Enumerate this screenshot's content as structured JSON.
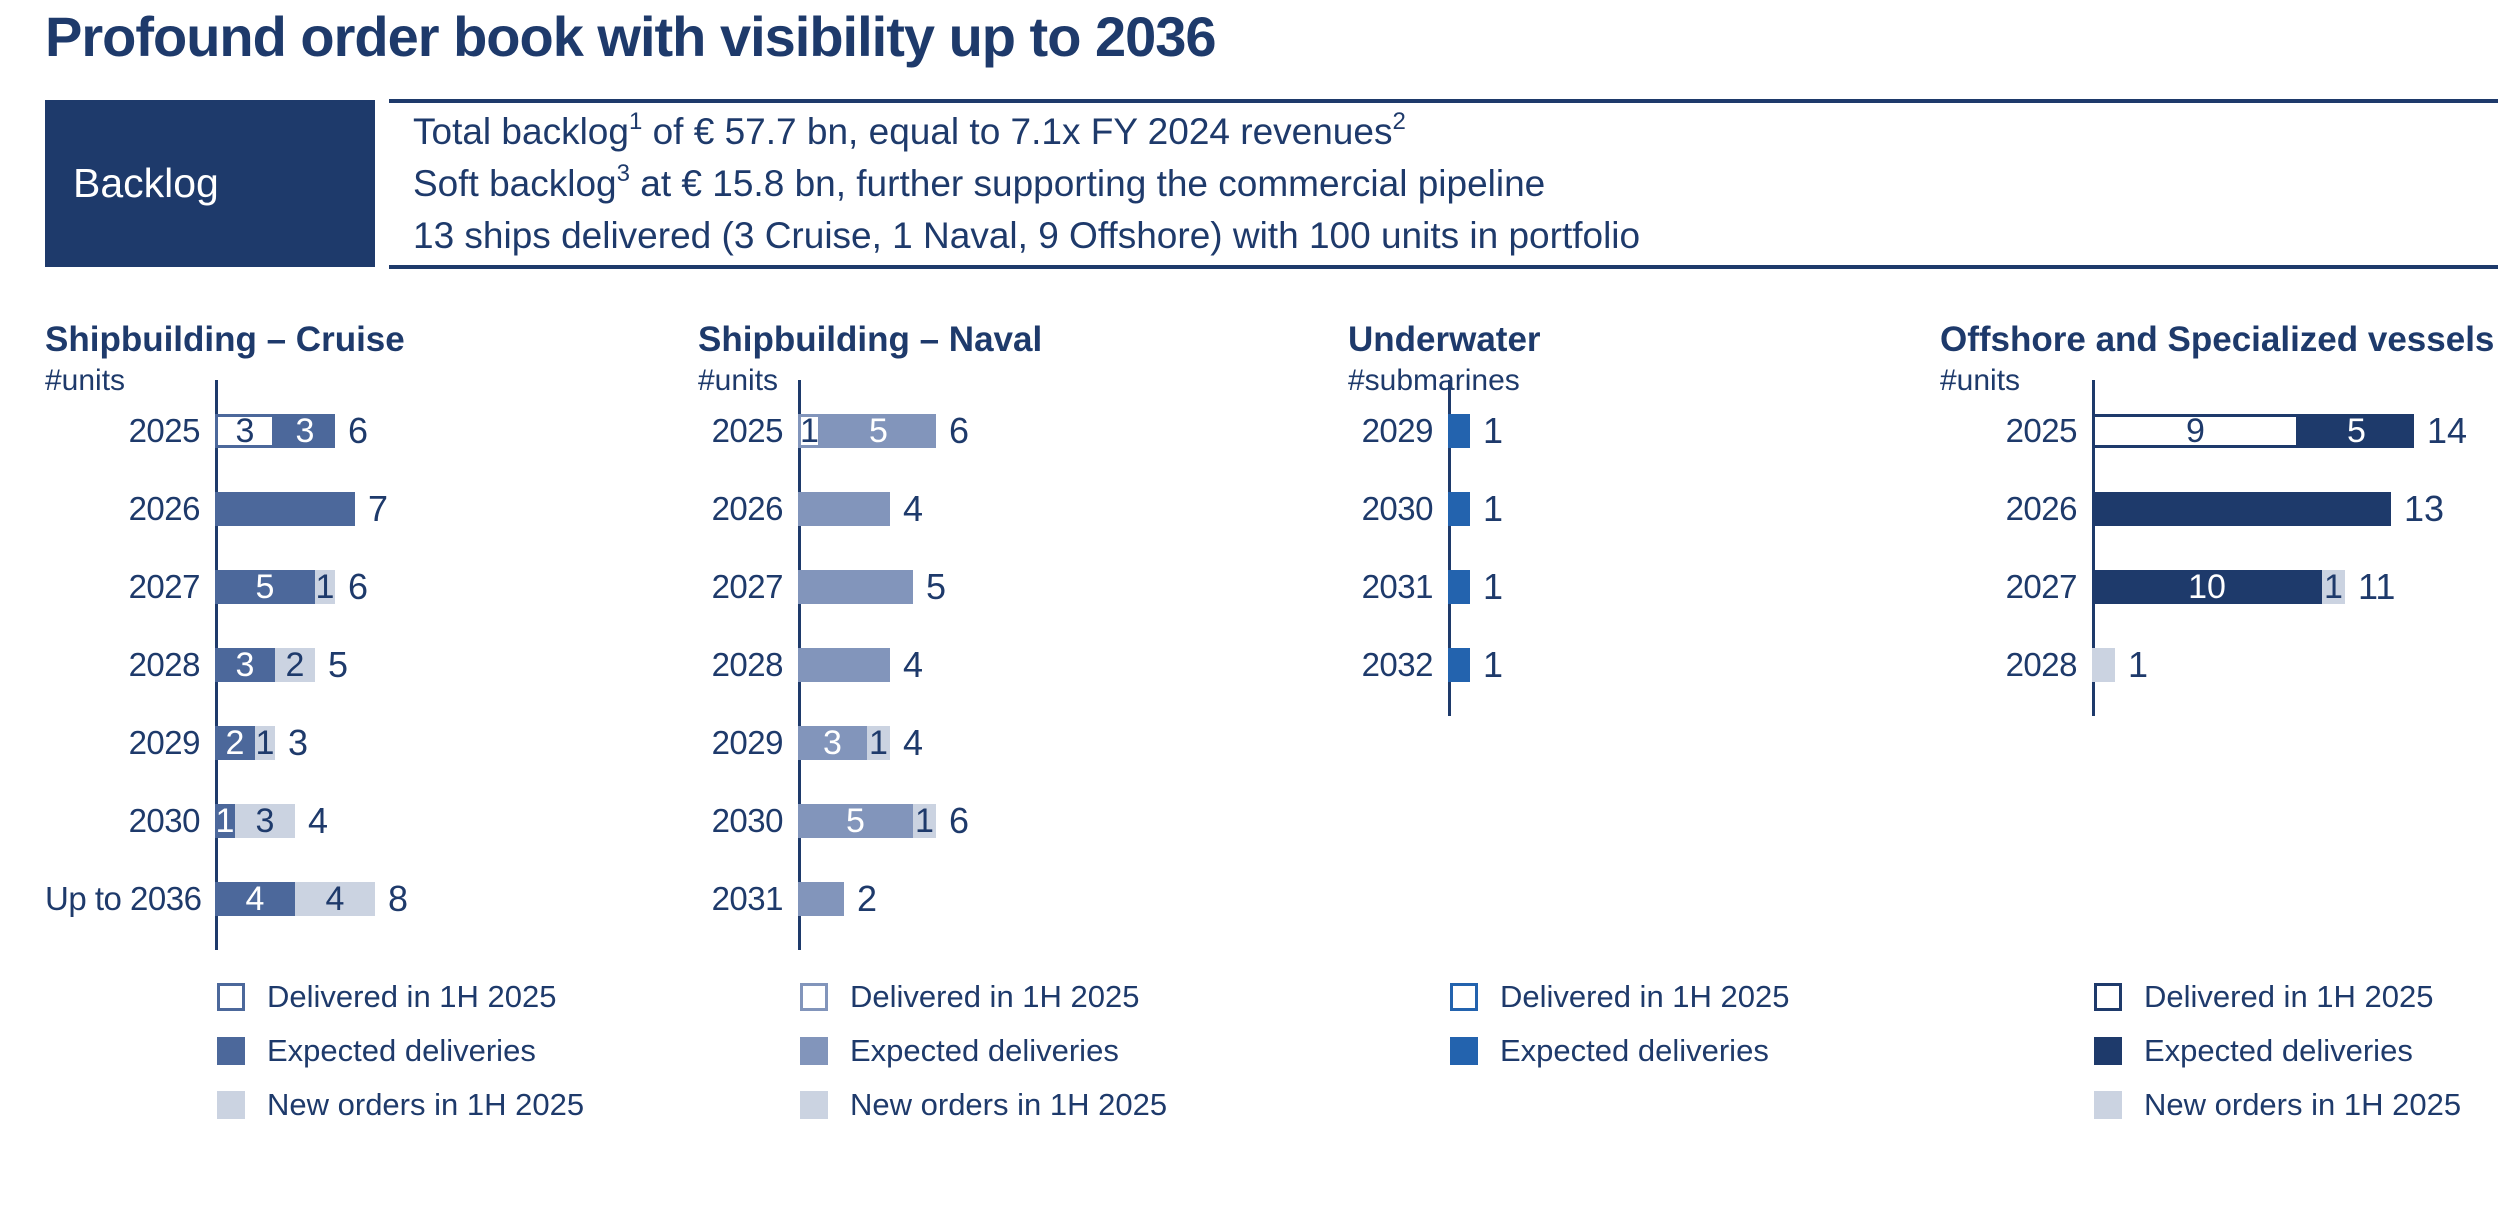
{
  "page": {
    "title": "Profound order book with visibility up to 2036"
  },
  "header": {
    "box_label": "Backlog",
    "lines": [
      {
        "parts": [
          {
            "text": "Total backlog"
          },
          {
            "text": "1",
            "sup": true
          },
          {
            "text": " of € 57.7 bn, equal to 7.1x FY 2024 revenues"
          },
          {
            "text": "2",
            "sup": true
          }
        ]
      },
      {
        "parts": [
          {
            "text": "Soft backlog"
          },
          {
            "text": "3",
            "sup": true
          },
          {
            "text": " at € 15.8 bn, further supporting the commercial pipeline"
          }
        ]
      },
      {
        "parts": [
          {
            "text": "13 ships delivered (3 Cruise, 1 Naval, 9 Offshore) with 100 units in portfolio"
          }
        ]
      }
    ]
  },
  "colors": {
    "navy": "#1E3A6B",
    "cruise_blue": "#4C689B",
    "naval_blue": "#8295BB",
    "underwater_blue": "#2363AE",
    "new_orders_gray": "#CBD3E1",
    "white": "#FFFFFF"
  },
  "chart_data": [
    {
      "type": "stacked_bar_horizontal",
      "slug": "shipbuilding-cruise",
      "title": "Shipbuilding – Cruise",
      "subtitle": "#units",
      "color_expected": "#4C689B",
      "color_new": "#CBD3E1",
      "categories": [
        "2025",
        "2026",
        "2027",
        "2028",
        "2029",
        "2030",
        "Up to 2036"
      ],
      "series": [
        {
          "name": "Delivered in 1H 2025",
          "values": [
            3,
            0,
            0,
            0,
            0,
            0,
            0
          ]
        },
        {
          "name": "Expected deliveries",
          "values": [
            3,
            7,
            5,
            3,
            2,
            1,
            4
          ]
        },
        {
          "name": "New orders in 1H 2025",
          "values": [
            0,
            0,
            1,
            2,
            1,
            3,
            4
          ]
        }
      ],
      "totals": [
        6,
        7,
        6,
        5,
        3,
        4,
        8
      ],
      "legend": [
        {
          "swatch": "delivered",
          "label": "Delivered in 1H 2025"
        },
        {
          "swatch": "expected",
          "label": "Expected deliveries"
        },
        {
          "swatch": "new",
          "label": "New orders in 1H 2025"
        }
      ]
    },
    {
      "type": "stacked_bar_horizontal",
      "slug": "shipbuilding-naval",
      "title": "Shipbuilding – Naval",
      "subtitle": "#units",
      "color_expected": "#8295BB",
      "color_new": "#CBD3E1",
      "categories": [
        "2025",
        "2026",
        "2027",
        "2028",
        "2029",
        "2030",
        "2031"
      ],
      "series": [
        {
          "name": "Delivered in 1H 2025",
          "values": [
            1,
            0,
            0,
            0,
            0,
            0,
            0
          ]
        },
        {
          "name": "Expected deliveries",
          "values": [
            5,
            4,
            5,
            4,
            3,
            5,
            2
          ]
        },
        {
          "name": "New orders in 1H 2025",
          "values": [
            0,
            0,
            0,
            0,
            1,
            1,
            0
          ]
        }
      ],
      "totals": [
        6,
        4,
        5,
        4,
        4,
        6,
        2
      ],
      "legend": [
        {
          "swatch": "delivered",
          "label": "Delivered in 1H 2025"
        },
        {
          "swatch": "expected",
          "label": "Expected deliveries"
        },
        {
          "swatch": "new",
          "label": "New orders in 1H 2025"
        }
      ]
    },
    {
      "type": "stacked_bar_horizontal",
      "slug": "underwater",
      "title": "Underwater",
      "subtitle": "#submarines",
      "color_expected": "#2363AE",
      "color_new": "#CBD3E1",
      "categories": [
        "2029",
        "2030",
        "2031",
        "2032"
      ],
      "series": [
        {
          "name": "Delivered in 1H 2025",
          "values": [
            0,
            0,
            0,
            0
          ]
        },
        {
          "name": "Expected deliveries",
          "values": [
            1,
            1,
            1,
            1
          ]
        }
      ],
      "totals": [
        1,
        1,
        1,
        1
      ],
      "legend": [
        {
          "swatch": "delivered",
          "label": "Delivered in 1H 2025"
        },
        {
          "swatch": "expected",
          "label": "Expected deliveries"
        }
      ]
    },
    {
      "type": "stacked_bar_horizontal",
      "slug": "offshore-specialized",
      "title": "Offshore and Specialized vessels",
      "subtitle": "#units",
      "color_expected": "#1E3A6B",
      "color_new": "#CBD3E1",
      "categories": [
        "2025",
        "2026",
        "2027",
        "2028"
      ],
      "series": [
        {
          "name": "Delivered in 1H 2025",
          "values": [
            9,
            0,
            0,
            0
          ]
        },
        {
          "name": "Expected deliveries",
          "values": [
            5,
            13,
            10,
            0
          ]
        },
        {
          "name": "New orders in 1H 2025",
          "values": [
            0,
            0,
            1,
            1
          ]
        }
      ],
      "totals": [
        14,
        13,
        11,
        1
      ],
      "legend": [
        {
          "swatch": "delivered",
          "label": "Delivered in 1H 2025"
        },
        {
          "swatch": "expected",
          "label": "Expected deliveries"
        },
        {
          "swatch": "new",
          "label": "New orders in 1H 2025"
        }
      ]
    }
  ]
}
